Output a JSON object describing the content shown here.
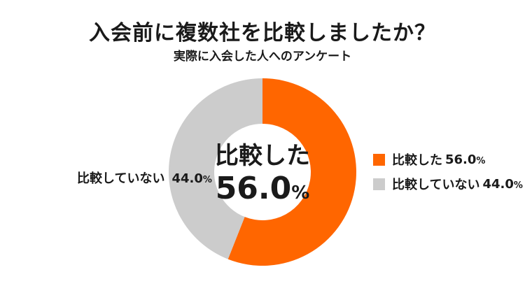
{
  "chart_data": {
    "type": "pie",
    "subtype": "donut",
    "title": "入会前に複数社を比較しましたか？",
    "subtitle": "実際に入会した人へのアンケート",
    "categories": [
      "比較した",
      "比較していない"
    ],
    "values": [
      56.0,
      44.0
    ],
    "unit": "%",
    "colors": [
      "#FF6600",
      "#CCCCCC"
    ],
    "center_label": {
      "name": "比較した",
      "value": "56.0",
      "unit": "%"
    },
    "slice_labels": [
      {
        "name": "比較していない",
        "value": "44.0",
        "unit": "%"
      }
    ],
    "legend": {
      "position": "right",
      "entries": [
        {
          "label": "比較した",
          "value": "56.0",
          "unit": "%",
          "color": "#FF6600"
        },
        {
          "label": "比較していない",
          "value": "44.0",
          "unit": "%",
          "color": "#CCCCCC"
        }
      ]
    }
  }
}
